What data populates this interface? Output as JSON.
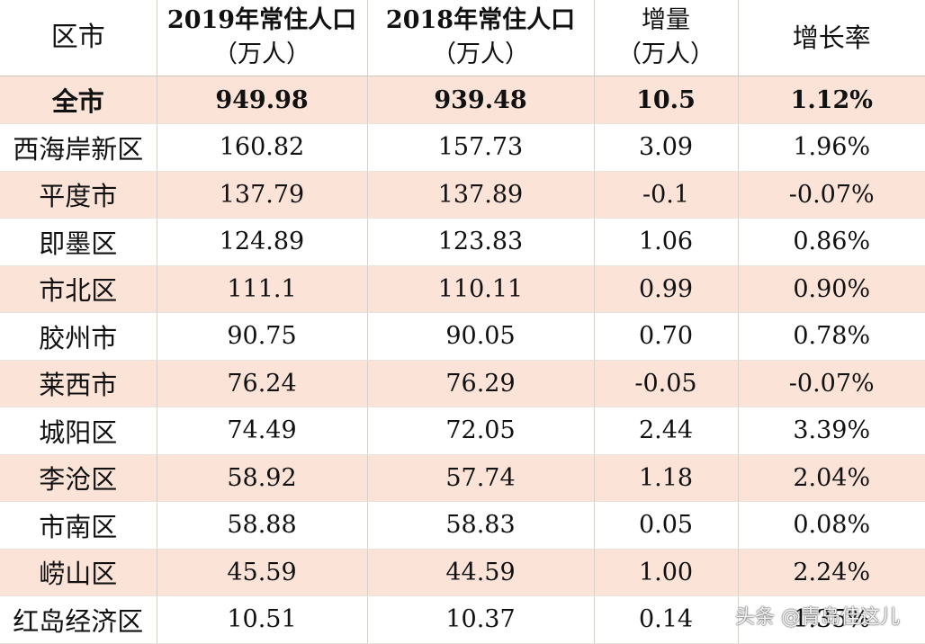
{
  "table": {
    "headers": {
      "region": "区市",
      "pop2019": [
        "2019年常住人口",
        "（万人）"
      ],
      "pop2018": [
        "2018年常住人口",
        "（万人）"
      ],
      "increase": [
        "增量",
        "（万人）"
      ],
      "rate": "增长率"
    },
    "rows": [
      {
        "region": "全市",
        "pop2019": "949.98",
        "pop2018": "939.48",
        "increase": "10.5",
        "rate": "1.12%"
      },
      {
        "region": "西海岸新区",
        "pop2019": "160.82",
        "pop2018": "157.73",
        "increase": "3.09",
        "rate": "1.96%"
      },
      {
        "region": "平度市",
        "pop2019": "137.79",
        "pop2018": "137.89",
        "increase": "-0.1",
        "rate": "-0.07%"
      },
      {
        "region": "即墨区",
        "pop2019": "124.89",
        "pop2018": "123.83",
        "increase": "1.06",
        "rate": "0.86%"
      },
      {
        "region": "市北区",
        "pop2019": "111.1",
        "pop2018": "110.11",
        "increase": "0.99",
        "rate": "0.90%"
      },
      {
        "region": "胶州市",
        "pop2019": "90.75",
        "pop2018": "90.05",
        "increase": "0.70",
        "rate": "0.78%"
      },
      {
        "region": "莱西市",
        "pop2019": "76.24",
        "pop2018": "76.29",
        "increase": "-0.05",
        "rate": "-0.07%"
      },
      {
        "region": "城阳区",
        "pop2019": "74.49",
        "pop2018": "72.05",
        "increase": "2.44",
        "rate": "3.39%"
      },
      {
        "region": "李沧区",
        "pop2019": "58.92",
        "pop2018": "57.74",
        "increase": "1.18",
        "rate": "2.04%"
      },
      {
        "region": "市南区",
        "pop2019": "58.88",
        "pop2018": "58.83",
        "increase": "0.05",
        "rate": "0.08%"
      },
      {
        "region": "崂山区",
        "pop2019": "45.59",
        "pop2018": "44.59",
        "increase": "1.00",
        "rate": "2.24%"
      },
      {
        "region": "红岛经济区",
        "pop2019": "10.51",
        "pop2018": "10.37",
        "increase": "0.14",
        "rate": "1.35%"
      }
    ]
  },
  "watermark": "头条 @青岛佳这儿",
  "colors": {
    "stripe": "#fbe3d8",
    "text": "#111111"
  }
}
